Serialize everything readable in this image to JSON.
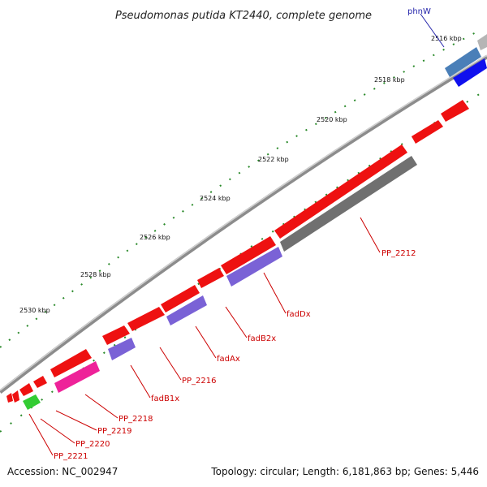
{
  "title": "Pseudomonas putida KT2440, complete genome",
  "footer": {
    "accession": "Accession: NC_002947",
    "summary": "Topology: circular; Length: 6,181,863 bp; Genes: 5,446"
  },
  "tick_labels": [
    "2516 kbp",
    "2518 kbp",
    "2520 kbp",
    "2522 kbp",
    "2524 kbp",
    "2526 kbp",
    "2528 kbp",
    "2530 kbp"
  ],
  "gene_labels": [
    {
      "name": "phnW",
      "color": "#2222aa"
    },
    {
      "name": "PP_2212",
      "color": "#cc0000"
    },
    {
      "name": "fadDx",
      "color": "#cc0000"
    },
    {
      "name": "fadB2x",
      "color": "#cc0000"
    },
    {
      "name": "fadAx",
      "color": "#cc0000"
    },
    {
      "name": "PP_2216",
      "color": "#cc0000"
    },
    {
      "name": "fadB1x",
      "color": "#cc0000"
    },
    {
      "name": "PP_2218",
      "color": "#cc0000"
    },
    {
      "name": "PP_2219",
      "color": "#cc0000"
    },
    {
      "name": "PP_2220",
      "color": "#cc0000"
    },
    {
      "name": "PP_2221",
      "color": "#cc0000"
    }
  ],
  "colors": {
    "backbone": "#8c8c8c",
    "cds": "#ee1111",
    "highlight_dark": "#707070",
    "purple": "#7a62d6",
    "magenta": "#ee2299",
    "green": "#33cc33",
    "steelblue": "#4a7fb8",
    "blue": "#1010ee",
    "ticks": "#2a8a2a"
  }
}
